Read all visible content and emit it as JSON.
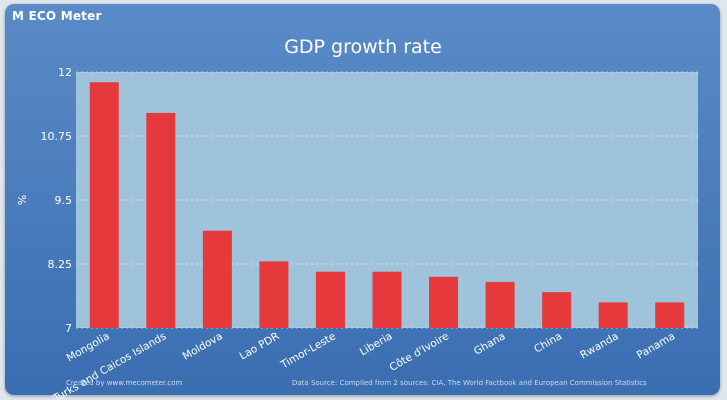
{
  "branding": {
    "logo": "M ECO Meter"
  },
  "footer": {
    "left": "Created by www.mecometer.com",
    "right": "Data Source: Compiled from 2 sources: CIA, The World Factbook and European Commission Statistics"
  },
  "colors": {
    "bar": "#e5393c",
    "plot_bg": "#9fc3da",
    "frame": "#4a7dbf"
  },
  "chart_data": {
    "type": "bar",
    "title": "GDP growth rate",
    "xlabel": "",
    "ylabel": "%",
    "ylim": [
      7,
      12
    ],
    "yticks": [
      7,
      8.25,
      9.5,
      10.75,
      12
    ],
    "ytick_labels": [
      "7",
      "8.25",
      "9.5",
      "10.75",
      "12"
    ],
    "grid": true,
    "categories": [
      "Mongolia",
      "Turks and Caicos Islands",
      "Moldova",
      "Lao PDR",
      "Timor-Leste",
      "Liberia",
      "Côte d'Ivoire",
      "Ghana",
      "China",
      "Rwanda",
      "Panama"
    ],
    "values": [
      11.8,
      11.2,
      8.9,
      8.3,
      8.1,
      8.1,
      8.0,
      7.9,
      7.7,
      7.5,
      7.5
    ]
  }
}
